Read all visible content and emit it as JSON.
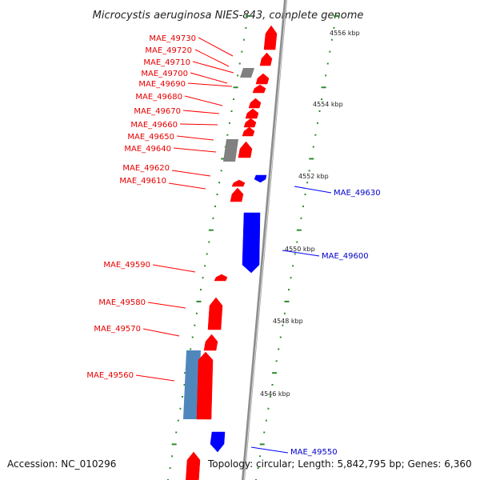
{
  "title": "Microcystis aeruginosa NIES-843, complete genome",
  "colors": {
    "forward_gene": "#ff0000",
    "reverse_gene": "#0000ff",
    "rna_gene": "#808080",
    "other_gene": "#4f87bd",
    "tick": "#2e8b2e",
    "backbone": "#8c8c8c"
  },
  "kbp_labels": [
    "4556 kbp",
    "4554 kbp",
    "4552 kbp",
    "4550 kbp",
    "4548 kbp",
    "4546 kbp"
  ],
  "forward_labels": [
    "MAE_49730",
    "MAE_49720",
    "MAE_49710",
    "MAE_49700",
    "MAE_49690",
    "MAE_49680",
    "MAE_49670",
    "MAE_49660",
    "MAE_49650",
    "MAE_49640",
    "MAE_49620",
    "MAE_49610",
    "MAE_49590",
    "MAE_49580",
    "MAE_49570",
    "MAE_49560"
  ],
  "reverse_labels": [
    "MAE_49630",
    "MAE_49600",
    "MAE_49550"
  ],
  "footer": {
    "accession": "Accession: NC_010296",
    "topology": "Topology: circular; Length: 5,842,795 bp; Genes: 6,360"
  }
}
